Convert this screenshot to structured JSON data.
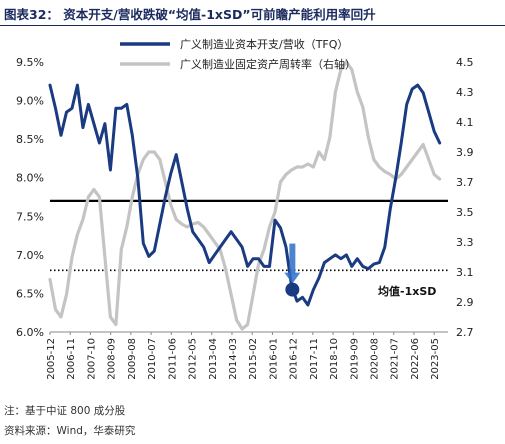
{
  "header": {
    "title": "图表32：  资本开支/营收跌破“均值-1xSD”可前瞻产能利用率回升"
  },
  "footer": {
    "note": "注：基于中证 800 成分股",
    "source": "资料来源：Wind，华泰研究"
  },
  "colors": {
    "capex": "#1a3a82",
    "turnover": "#c4c4c4",
    "mean_line": "#000000",
    "sd_line": "#000000",
    "marker": "#1a3a82",
    "highlight_arrow": "#2f6fc7"
  },
  "chart_data": {
    "type": "line",
    "title": "",
    "xlabel": "",
    "ylabel": "",
    "x_ticks": [
      "2005-12",
      "2006-11",
      "2007-10",
      "2008-09",
      "2009-08",
      "2010-07",
      "2011-06",
      "2012-05",
      "2013-04",
      "2014-03",
      "2015-02",
      "2016-01",
      "2016-12",
      "2017-11",
      "2018-10",
      "2019-09",
      "2020-08",
      "2021-07",
      "2022-06",
      "2023-05"
    ],
    "y_left": {
      "ylim": [
        6.0,
        9.5
      ],
      "ticks": [
        "6.0%",
        "6.5%",
        "7.0%",
        "7.5%",
        "8.0%",
        "8.5%",
        "9.0%",
        "9.5%"
      ]
    },
    "y_right": {
      "ylim": [
        2.7,
        4.5
      ],
      "ticks": [
        "2.7",
        "2.9",
        "3.1",
        "3.3",
        "3.5",
        "3.7",
        "3.9",
        "4.1",
        "4.3",
        "4.5"
      ]
    },
    "legend": [
      "广义制造业资本开支/营收（TFQ）",
      "广义制造业固定资产周转率（右轴）"
    ],
    "legend_position": "top-center",
    "annotation": "均值-1xSD",
    "reference_lines": [
      {
        "name": "mean",
        "axis": "left",
        "value": 7.7,
        "style": "solid"
      },
      {
        "name": "mean-1xSD",
        "axis": "left",
        "value": 6.8,
        "style": "dotted"
      }
    ],
    "highlight_point": {
      "x": 2016.96,
      "y": 6.55
    },
    "series": [
      {
        "name": "广义制造业资本开支/营收（TFQ）",
        "axis": "left",
        "x": [
          2005.92,
          2006.17,
          2006.42,
          2006.67,
          2006.92,
          2007.17,
          2007.42,
          2007.67,
          2007.92,
          2008.17,
          2008.42,
          2008.67,
          2008.92,
          2009.17,
          2009.42,
          2009.67,
          2009.92,
          2010.17,
          2010.42,
          2010.67,
          2010.92,
          2011.17,
          2011.42,
          2011.67,
          2011.92,
          2012.17,
          2012.42,
          2012.67,
          2012.92,
          2013.17,
          2013.42,
          2013.67,
          2013.92,
          2014.17,
          2014.42,
          2014.67,
          2014.92,
          2015.17,
          2015.42,
          2015.67,
          2015.92,
          2016.17,
          2016.42,
          2016.67,
          2016.92,
          2017.17,
          2017.42,
          2017.67,
          2017.92,
          2018.17,
          2018.42,
          2018.67,
          2018.92,
          2019.17,
          2019.42,
          2019.67,
          2019.92,
          2020.17,
          2020.42,
          2020.67,
          2020.92,
          2021.17,
          2021.42,
          2021.67,
          2021.92,
          2022.17,
          2022.42,
          2022.67,
          2022.92,
          2023.17,
          2023.42,
          2023.67
        ],
        "values": [
          9.2,
          8.9,
          8.55,
          8.85,
          8.9,
          9.2,
          8.65,
          8.95,
          8.7,
          8.45,
          8.7,
          8.1,
          8.9,
          8.9,
          8.95,
          8.55,
          8.0,
          7.15,
          6.98,
          7.05,
          7.4,
          7.75,
          8.05,
          8.3,
          7.95,
          7.6,
          7.3,
          7.2,
          7.1,
          6.9,
          7.0,
          7.1,
          7.2,
          7.3,
          7.2,
          7.1,
          6.85,
          6.95,
          6.95,
          6.85,
          6.85,
          7.45,
          7.35,
          7.1,
          6.6,
          6.4,
          6.45,
          6.35,
          6.55,
          6.7,
          6.9,
          6.95,
          7.0,
          6.95,
          7.0,
          6.85,
          6.95,
          6.85,
          6.82,
          6.88,
          6.9,
          7.1,
          7.6,
          8.0,
          8.45,
          8.95,
          9.15,
          9.2,
          9.1,
          8.85,
          8.6,
          8.45
        ]
      },
      {
        "name": "广义制造业固定资产周转率（右轴）",
        "axis": "right",
        "x": [
          2005.92,
          2006.17,
          2006.42,
          2006.67,
          2006.92,
          2007.17,
          2007.42,
          2007.67,
          2007.92,
          2008.17,
          2008.42,
          2008.67,
          2008.92,
          2009.17,
          2009.42,
          2009.67,
          2009.92,
          2010.17,
          2010.42,
          2010.67,
          2010.92,
          2011.17,
          2011.42,
          2011.67,
          2011.92,
          2012.17,
          2012.42,
          2012.67,
          2012.92,
          2013.17,
          2013.42,
          2013.67,
          2013.92,
          2014.17,
          2014.42,
          2014.67,
          2014.92,
          2015.17,
          2015.42,
          2015.67,
          2015.92,
          2016.17,
          2016.42,
          2016.67,
          2016.92,
          2017.17,
          2017.42,
          2017.67,
          2017.92,
          2018.17,
          2018.42,
          2018.67,
          2018.92,
          2019.17,
          2019.42,
          2019.67,
          2019.92,
          2020.17,
          2020.42,
          2020.67,
          2020.92,
          2021.17,
          2021.42,
          2021.67,
          2021.92,
          2022.17,
          2022.42,
          2022.67,
          2022.92,
          2023.17,
          2023.42,
          2023.67
        ],
        "values": [
          3.05,
          2.85,
          2.8,
          2.95,
          3.2,
          3.35,
          3.45,
          3.6,
          3.65,
          3.6,
          3.2,
          2.8,
          2.75,
          3.25,
          3.4,
          3.6,
          3.75,
          3.85,
          3.9,
          3.9,
          3.85,
          3.7,
          3.55,
          3.45,
          3.42,
          3.4,
          3.42,
          3.43,
          3.4,
          3.35,
          3.3,
          3.25,
          3.12,
          2.95,
          2.78,
          2.72,
          2.75,
          2.95,
          3.15,
          3.25,
          3.4,
          3.5,
          3.7,
          3.75,
          3.78,
          3.8,
          3.8,
          3.82,
          3.8,
          3.9,
          3.85,
          4.0,
          4.3,
          4.45,
          4.5,
          4.45,
          4.3,
          4.2,
          4.0,
          3.85,
          3.8,
          3.77,
          3.75,
          3.72,
          3.75,
          3.8,
          3.85,
          3.9,
          3.95,
          3.85,
          3.75,
          3.72
        ]
      }
    ]
  }
}
